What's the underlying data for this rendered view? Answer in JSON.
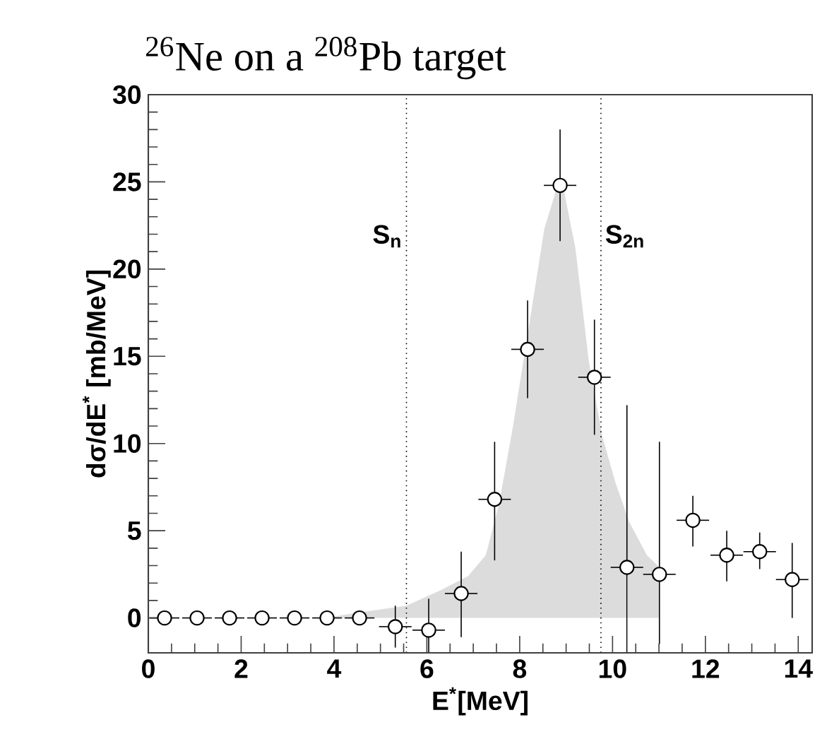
{
  "chart_data": {
    "type": "scatter",
    "title": "$^{26}$Ne on a $^{208}$Pb target",
    "xlabel": "E$^{*}$[MeV]",
    "ylabel": "dσ/dE$^{*}$ [mb/MeV]",
    "xlim": [
      0,
      14.3
    ],
    "ylim": [
      -2,
      30
    ],
    "xticks": [
      0,
      2,
      4,
      6,
      8,
      10,
      12,
      14
    ],
    "yticks": [
      0,
      5,
      10,
      15,
      20,
      25,
      30
    ],
    "series": [
      {
        "type": "area",
        "color": "#dcdcdc",
        "x": [
          3.8,
          4.77,
          5.56,
          6.31,
          6.89,
          7.27,
          7.56,
          7.85,
          8.24,
          8.53,
          8.77,
          8.87,
          8.96,
          9.2,
          9.49,
          9.78,
          10.07,
          10.36,
          10.74,
          11.01,
          11.01
        ],
        "values": [
          0,
          0.4,
          0.7,
          1.6,
          2.4,
          3.6,
          6.6,
          10.9,
          17.4,
          22.3,
          24.4,
          25.0,
          24.4,
          21.2,
          14.7,
          10.4,
          7.7,
          5.5,
          3.6,
          2.9,
          0
        ]
      },
      {
        "color": "#000000",
        "marker": "circle",
        "x": [
          0.35,
          1.05,
          1.75,
          2.45,
          3.15,
          3.85,
          4.55,
          5.32,
          6.04,
          6.74,
          7.46,
          8.17,
          8.87,
          9.61,
          10.31,
          11.01,
          11.73,
          12.46,
          13.17,
          13.87
        ],
        "values": [
          0,
          0,
          0,
          0,
          0,
          0,
          0,
          -0.5,
          -0.7,
          1.4,
          6.8,
          15.4,
          24.8,
          13.8,
          2.9,
          2.5,
          5.6,
          3.6,
          3.8,
          2.2
        ],
        "errors": [
          null,
          null,
          null,
          null,
          null,
          null,
          null,
          [
            -1.7,
            0.7
          ],
          [
            -2,
            1.1
          ],
          [
            -1.1,
            3.8
          ],
          [
            3.3,
            10.1
          ],
          [
            12.6,
            18.2
          ],
          [
            21.6,
            28.0
          ],
          [
            10.5,
            17.1
          ],
          [
            -2,
            12.2
          ],
          [
            -1.5,
            10.1
          ],
          [
            4.1,
            7.0
          ],
          [
            2.1,
            5.0
          ],
          [
            2.8,
            4.9
          ],
          [
            0.0,
            4.3
          ]
        ],
        "xerrors": [
          0.32,
          0.32,
          0.32,
          0.32,
          0.32,
          0.32,
          0.32,
          0.35,
          0.35,
          0.35,
          0.35,
          0.35,
          0.35,
          0.35,
          0.35,
          0.35,
          0.35,
          0.35,
          0.35,
          0.35
        ]
      }
    ],
    "ref_lines": [
      {
        "axis": "x",
        "value": 5.56,
        "label": "S$_{n}$",
        "line_style": "dotted"
      },
      {
        "axis": "x",
        "value": 9.75,
        "label": "S$_{2n}$",
        "line_style": "dotted"
      }
    ]
  }
}
